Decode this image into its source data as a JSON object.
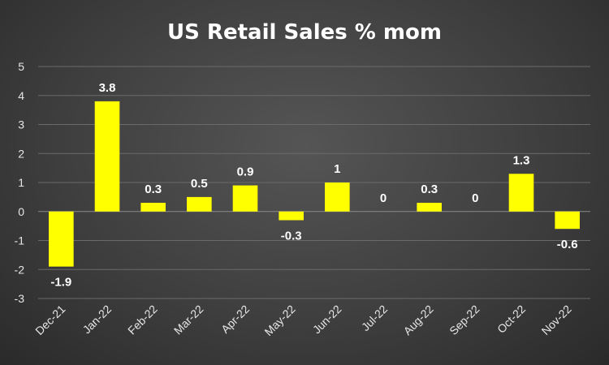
{
  "chart_data": {
    "type": "bar",
    "title": "US Retail Sales % mom",
    "xlabel": "",
    "ylabel": "",
    "categories": [
      "Dec-21",
      "Jan-22",
      "Feb-22",
      "Mar-22",
      "Apr-22",
      "May-22",
      "Jun-22",
      "Jul-22",
      "Aug-22",
      "Sep-22",
      "Oct-22",
      "Nov-22"
    ],
    "values": [
      -1.9,
      3.8,
      0.3,
      0.5,
      0.9,
      -0.3,
      1,
      0,
      0.3,
      0,
      1.3,
      -0.6
    ],
    "data_labels": [
      "-1.9",
      "3.8",
      "0.3",
      "0.5",
      "0.9",
      "-0.3",
      "1",
      "0",
      "0.3",
      "0",
      "1.3",
      "-0.6"
    ],
    "ylim": [
      -3,
      5
    ],
    "yticks": [
      -3,
      -2,
      -1,
      0,
      1,
      2,
      3,
      4,
      5
    ],
    "grid": true,
    "legend": "none",
    "colors": {
      "bar": "#ffff00",
      "background": "#404040",
      "text": "#ffffff",
      "grid": "#6a6a6a"
    }
  }
}
